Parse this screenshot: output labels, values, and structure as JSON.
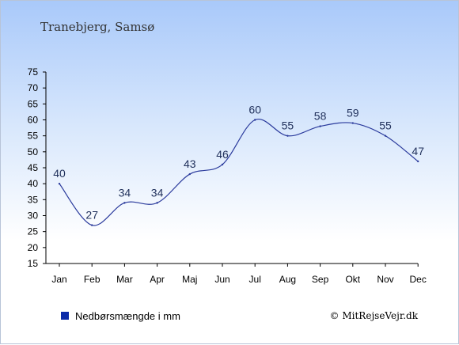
{
  "title": "Tranebjerg, Samsø",
  "legend": {
    "label": "Nedbørsmængde i mm",
    "color": "#0a2aa8"
  },
  "credit": "© MitRejseVejr.dk",
  "chart_data": {
    "type": "line",
    "categories": [
      "Jan",
      "Feb",
      "Mar",
      "Apr",
      "Maj",
      "Jun",
      "Jul",
      "Aug",
      "Sep",
      "Okt",
      "Nov",
      "Dec"
    ],
    "series": [
      {
        "name": "Nedbørsmængde i mm",
        "values": [
          40,
          27,
          34,
          34,
          43,
          46,
          60,
          55,
          58,
          59,
          55,
          47
        ],
        "color": "#2a3a9c"
      }
    ],
    "ylim": [
      15,
      75
    ],
    "yticks": [
      15,
      20,
      25,
      30,
      35,
      40,
      45,
      50,
      55,
      60,
      65,
      70,
      75
    ],
    "grid": false,
    "legend_position": "bottom-left"
  }
}
